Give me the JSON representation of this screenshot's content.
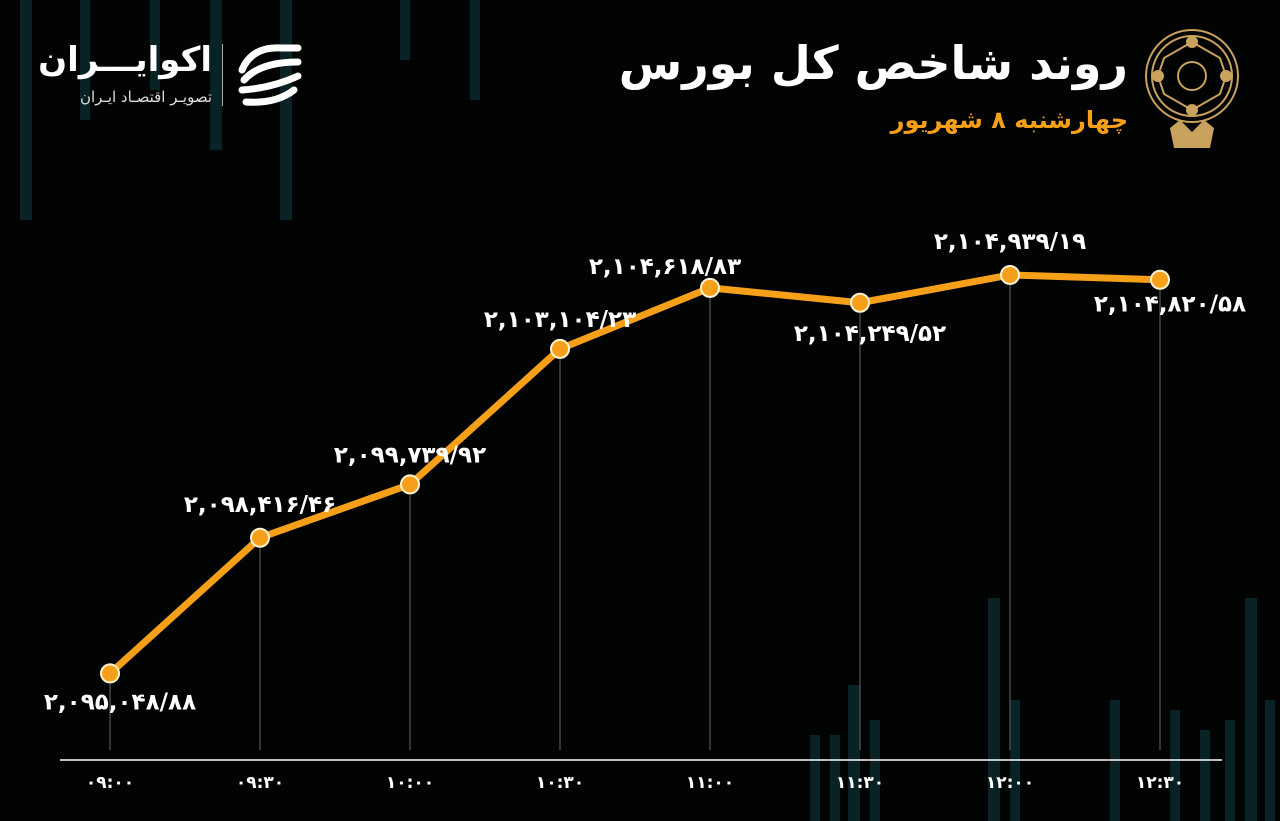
{
  "header": {
    "title": "روند شاخص کل بورس",
    "subtitle": "چهارشنبه ۸ شهریور"
  },
  "brand": {
    "name": "اکوایـــران",
    "tagline": "تصویـر اقتصـاد ایـران"
  },
  "colors": {
    "background": "#020303",
    "line": "#f6a019",
    "marker": "#f6a019",
    "marker_stroke": "#fff3d6",
    "labels": "#ffffff",
    "axis": "#ffffff",
    "accent": "#f6a019",
    "seal": "#c9a25e"
  },
  "chart_data": {
    "type": "line",
    "title": "روند شاخص کل بورس",
    "subtitle": "چهارشنبه ۸ شهریور",
    "xlabel": "",
    "ylabel": "",
    "categories": [
      "09:00",
      "09:30",
      "10:00",
      "10:30",
      "11:00",
      "11:30",
      "12:00",
      "12:30"
    ],
    "tick_labels": [
      "۰۹:۰۰",
      "۰۹:۳۰",
      "۱۰:۰۰",
      "۱۰:۳۰",
      "۱۱:۰۰",
      "۱۱:۳۰",
      "۱۲:۰۰",
      "۱۲:۳۰"
    ],
    "values": [
      2095048.88,
      2098416.46,
      2099739.92,
      2103104.23,
      2104618.83,
      2104249.52,
      2104939.19,
      2104820.58
    ],
    "data_labels": [
      "۲,۰۹۵,۰۴۸/۸۸",
      "۲,۰۹۸,۴۱۶/۴۶",
      "۲,۰۹۹,۷۳۹/۹۲",
      "۲,۱۰۳,۱۰۴/۲۳",
      "۲,۱۰۴,۶۱۸/۸۳",
      "۲,۱۰۴,۲۴۹/۵۲",
      "۲,۱۰۴,۹۳۹/۱۹",
      "۲,۱۰۴,۸۲۰/۵۸"
    ],
    "ylim": [
      2092900,
      2106800
    ],
    "grid": false,
    "legend": "none"
  }
}
